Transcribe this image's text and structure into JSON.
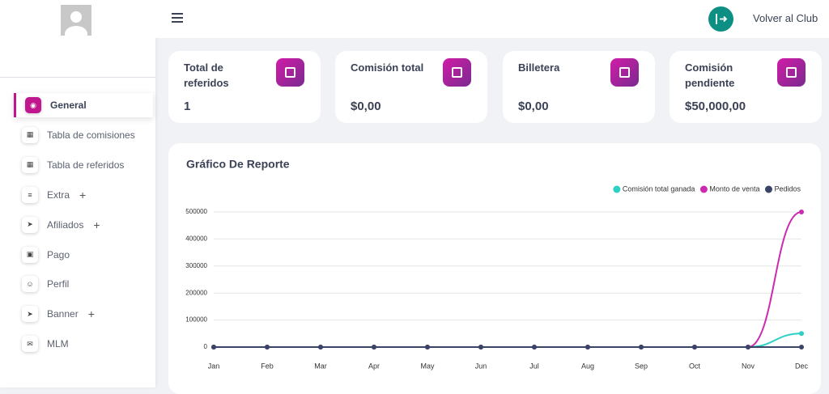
{
  "header": {
    "button": "Volver al Club"
  },
  "sidebar": {
    "menu": [
      "General",
      "Tabla de comisiones",
      "Tabla de referidos",
      "Extra",
      "Afiliados",
      "Pago",
      "Perfil",
      "Banner",
      "MLM"
    ]
  },
  "cards": [
    {
      "label": "Total de referidos",
      "value": "1"
    },
    {
      "label": "Comisión total",
      "value": "$0,00"
    },
    {
      "label": "Billetera",
      "value": "$0,00"
    },
    {
      "label": "Comisión pendiente",
      "value": "$50,000,00"
    }
  ],
  "chart_data": {
    "type": "line",
    "title": "Gráfico De Reporte",
    "categories": [
      "Jan",
      "Feb",
      "Mar",
      "Apr",
      "May",
      "Jun",
      "Jul",
      "Aug",
      "Sep",
      "Oct",
      "Nov",
      "Dec"
    ],
    "series": [
      {
        "name": "Comisión total ganada",
        "color": "#2ecfc4",
        "values": [
          0,
          0,
          0,
          0,
          0,
          0,
          0,
          0,
          0,
          0,
          0,
          50000
        ]
      },
      {
        "name": "Monto de venta",
        "color": "#cc2ab0",
        "values": [
          0,
          0,
          0,
          0,
          0,
          0,
          0,
          0,
          0,
          0,
          0,
          500000
        ]
      },
      {
        "name": "Pedidos",
        "color": "#3a4466",
        "values": [
          0,
          0,
          0,
          0,
          0,
          0,
          0,
          0,
          0,
          0,
          0,
          0
        ]
      }
    ],
    "ylim": [
      0,
      500000
    ],
    "yticks": [
      0,
      100000,
      200000,
      300000,
      400000,
      500000
    ],
    "grid": true,
    "legend": "top-right"
  }
}
